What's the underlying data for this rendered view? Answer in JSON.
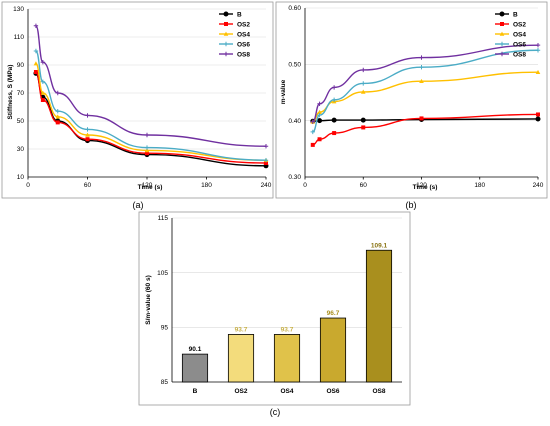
{
  "captions": [
    "(a)",
    "(b)",
    "(c)"
  ],
  "chart_data": [
    {
      "type": "line",
      "xlabel": "Time (s)",
      "ylabel": "Stiffness, S (MPa)",
      "xlim": [
        0,
        240
      ],
      "ylim": [
        10,
        130
      ],
      "xticks": [
        0,
        60,
        120,
        180,
        240
      ],
      "yticks": [
        10,
        30,
        50,
        70,
        90,
        110,
        130
      ],
      "grid": "horizontal",
      "legend": "top-right",
      "x": [
        8,
        15,
        30,
        60,
        120,
        240
      ],
      "series": [
        {
          "name": "B",
          "color": "#000000",
          "marker": "circle",
          "values": [
            84,
            67,
            50,
            36,
            26,
            18
          ]
        },
        {
          "name": "OS2",
          "color": "#ff0000",
          "marker": "square",
          "values": [
            85,
            65,
            49,
            37,
            27,
            20
          ]
        },
        {
          "name": "OS4",
          "color": "#ffc000",
          "marker": "triangle",
          "values": [
            91,
            70,
            53,
            40,
            29,
            22
          ]
        },
        {
          "name": "OS6",
          "color": "#4bacc6",
          "marker": "plus",
          "values": [
            100,
            78,
            57,
            44,
            31,
            22
          ]
        },
        {
          "name": "OS8",
          "color": "#7030a0",
          "marker": "plus",
          "values": [
            118,
            92,
            70,
            54,
            40,
            32
          ]
        }
      ]
    },
    {
      "type": "line",
      "xlabel": "Time (s)",
      "ylabel": "m-value",
      "xlim": [
        0,
        240
      ],
      "ylim": [
        0.3,
        0.6
      ],
      "xticks": [
        0,
        60,
        120,
        180,
        240
      ],
      "yticks": [
        "0.30",
        "0.40",
        "0.50",
        "0.60"
      ],
      "grid": "horizontal",
      "legend": "top-right",
      "x": [
        8,
        15,
        30,
        60,
        120,
        240
      ],
      "series": [
        {
          "name": "B",
          "color": "#000000",
          "marker": "circle",
          "values": [
            0.399,
            0.4,
            0.401,
            0.401,
            0.402,
            0.403
          ]
        },
        {
          "name": "OS2",
          "color": "#ff0000",
          "marker": "square",
          "values": [
            0.357,
            0.367,
            0.378,
            0.388,
            0.404,
            0.411
          ]
        },
        {
          "name": "OS4",
          "color": "#ffc000",
          "marker": "triangle",
          "values": [
            0.398,
            0.415,
            0.434,
            0.451,
            0.47,
            0.486
          ]
        },
        {
          "name": "OS6",
          "color": "#4bacc6",
          "marker": "plus",
          "values": [
            0.38,
            0.41,
            0.437,
            0.466,
            0.495,
            0.525
          ]
        },
        {
          "name": "OS8",
          "color": "#7030a0",
          "marker": "plus",
          "values": [
            0.398,
            0.43,
            0.459,
            0.49,
            0.512,
            0.534
          ]
        }
      ]
    },
    {
      "type": "bar",
      "ylabel": "S/m-value (60 s)",
      "ylim": [
        85,
        115
      ],
      "yticks": [
        85,
        95,
        105,
        115
      ],
      "grid": "horizontal",
      "categories": [
        "B",
        "OS2",
        "OS4",
        "OS6",
        "OS8"
      ],
      "values": [
        90.1,
        93.7,
        93.7,
        96.7,
        109.1
      ],
      "value_labels": [
        "90.1",
        "93.7",
        "93.7",
        "96.7",
        "109.1"
      ],
      "colors": [
        "#8c8c8c",
        "#f3dc7c",
        "#e0c24a",
        "#c9a92e",
        "#a98f1e"
      ],
      "label_colors": [
        "#000000",
        "#c9b24a",
        "#c9b24a",
        "#a98f1e",
        "#8a7414"
      ]
    }
  ]
}
